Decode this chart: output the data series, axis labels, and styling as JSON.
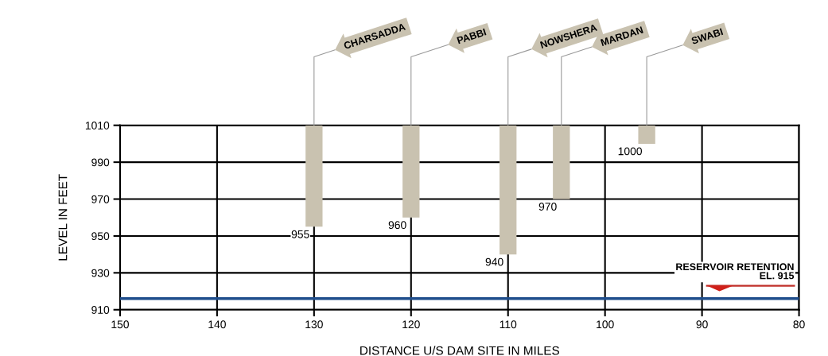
{
  "chart_data": {
    "type": "bar",
    "xlabel": "DISTANCE U/S DAM SITE IN MILES",
    "ylabel": "LEVEL IN FEET",
    "x": [
      130,
      120,
      110,
      104.5,
      95.7
    ],
    "values": [
      55,
      50,
      70,
      40,
      10
    ],
    "base": [
      955,
      960,
      940,
      970,
      1000
    ],
    "color": "#c9c2b0",
    "xlim": [
      150,
      80
    ],
    "xticks": [
      150,
      140,
      130,
      120,
      110,
      100,
      90,
      80
    ],
    "ylim": [
      910,
      1010
    ],
    "yticks": [
      910,
      930,
      950,
      970,
      990,
      1010
    ],
    "grid": true,
    "ref_lines": [
      {
        "axis": "y",
        "value": 916,
        "color": "#1f4e8c"
      }
    ],
    "annotations": [
      {
        "text": "CHARSADDA",
        "x": 130,
        "y": 1010
      },
      {
        "text": "PABBI",
        "x": 120,
        "y": 1010
      },
      {
        "text": "NOWSHERA",
        "x": 110,
        "y": 1010
      },
      {
        "text": "MARDAN",
        "x": 104.5,
        "y": 1010
      },
      {
        "text": "SWABI",
        "x": 95.7,
        "y": 1010
      },
      {
        "text": "955",
        "x": 130,
        "y": 955
      },
      {
        "text": "960",
        "x": 120,
        "y": 960
      },
      {
        "text": "940",
        "x": 110,
        "y": 940
      },
      {
        "text": "970",
        "x": 104.5,
        "y": 970
      },
      {
        "text": "1000",
        "x": 95.7,
        "y": 1000
      },
      "RESERVOIR RETENTION\nEL. 915"
    ]
  }
}
